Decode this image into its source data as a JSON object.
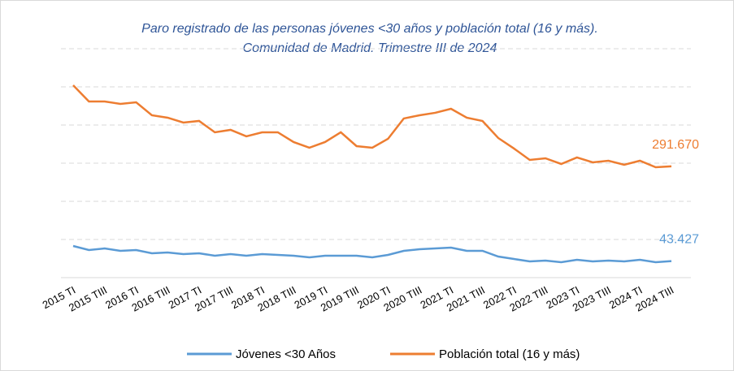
{
  "chart_data": {
    "type": "line",
    "title": "Paro registrado de las personas jóvenes <30 años y población total (16 y más).",
    "subtitle": "Comunidad de Madrid. Trimestre III de 2024",
    "categories": [
      "2015 TI",
      null,
      "2015 TIII",
      null,
      "2016 TI",
      null,
      "2016 TIII",
      null,
      "2017 TI",
      null,
      "2017 TIII",
      null,
      "2018 TI",
      null,
      "2018 TIII",
      null,
      "2019 TI",
      null,
      "2019 TIII",
      null,
      "2020 TI",
      null,
      "2020 TIII",
      null,
      "2021 TI",
      null,
      "2021 TIII",
      null,
      "2022 TI",
      null,
      "2022 TIII",
      null,
      "2023 TI",
      null,
      "2023 TIII",
      null,
      "2024 TI",
      null,
      "2024 TIII"
    ],
    "series": [
      {
        "name": "Jóvenes <30 Años",
        "color": "#5b9bd5",
        "values": [
          83000,
          72300,
          76600,
          70200,
          72300,
          63800,
          66000,
          61700,
          63800,
          57500,
          61700,
          57500,
          61700,
          59600,
          57500,
          53200,
          57500,
          57500,
          57500,
          53200,
          59600,
          70200,
          74500,
          76600,
          78700,
          70200,
          70200,
          55300,
          48900,
          42600,
          44700,
          40400,
          46800,
          42600,
          44700,
          42600,
          46800,
          40400,
          43427
        ],
        "value_labels": [
          null,
          null,
          null,
          null,
          null,
          null,
          null,
          null,
          null,
          null,
          null,
          null,
          null,
          null,
          null,
          null,
          null,
          null,
          null,
          null,
          null,
          null,
          null,
          null,
          null,
          null,
          null,
          null,
          null,
          null,
          null,
          null,
          null,
          null,
          null,
          null,
          null,
          null,
          "43.427"
        ]
      },
      {
        "name": "Población total (16 y más)",
        "color": "#ed7d31",
        "values": [
          504300,
          461800,
          461800,
          455400,
          459600,
          425600,
          419200,
          406400,
          410700,
          380900,
          387300,
          370300,
          380900,
          380900,
          355400,
          340500,
          355400,
          380900,
          344700,
          340500,
          363900,
          417100,
          425600,
          432000,
          442600,
          419200,
          410700,
          366000,
          338400,
          308600,
          312800,
          297900,
          315000,
          302200,
          306400,
          295800,
          306400,
          289400,
          291670
        ],
        "value_labels": [
          null,
          null,
          null,
          null,
          null,
          null,
          null,
          null,
          null,
          null,
          null,
          null,
          null,
          null,
          null,
          null,
          null,
          null,
          null,
          null,
          null,
          null,
          null,
          null,
          null,
          null,
          null,
          null,
          null,
          null,
          null,
          null,
          null,
          null,
          null,
          null,
          null,
          null,
          "291.670"
        ]
      }
    ],
    "ylim": [
      0,
      600000
    ],
    "yticks": [
      0,
      100000,
      200000,
      300000,
      400000,
      500000,
      600000
    ],
    "grid": true
  }
}
